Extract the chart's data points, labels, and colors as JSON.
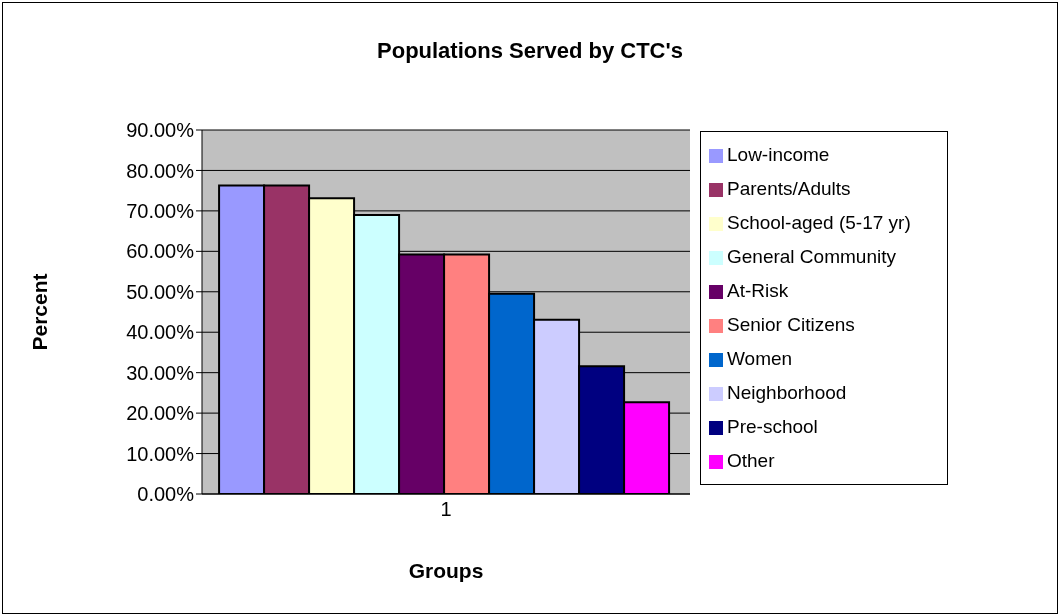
{
  "chart_data": {
    "type": "bar",
    "title": "Populations Served by CTC's",
    "xlabel": "Groups",
    "ylabel": "Percent",
    "categories": [
      "1"
    ],
    "series": [
      {
        "name": "Low-income",
        "color": "#9999ff",
        "values": [
          76.3
        ]
      },
      {
        "name": "Parents/Adults",
        "color": "#993366",
        "values": [
          76.3
        ]
      },
      {
        "name": "School-aged (5-17 yr)",
        "color": "#ffffcc",
        "values": [
          73.1
        ]
      },
      {
        "name": "General Community",
        "color": "#ccffff",
        "values": [
          69.0
        ]
      },
      {
        "name": "At-Risk",
        "color": "#660066",
        "values": [
          59.2
        ]
      },
      {
        "name": "Senior Citizens",
        "color": "#ff8080",
        "values": [
          59.2
        ]
      },
      {
        "name": "Women",
        "color": "#0066cc",
        "values": [
          49.5
        ]
      },
      {
        "name": "Neighborhood",
        "color": "#ccccff",
        "values": [
          43.1
        ]
      },
      {
        "name": "Pre-school",
        "color": "#000080",
        "values": [
          31.6
        ]
      },
      {
        "name": "Other",
        "color": "#ff00ff",
        "values": [
          22.7
        ]
      }
    ],
    "ylim": [
      0,
      90
    ],
    "yticks": [
      {
        "value": 0,
        "label": "0.00%"
      },
      {
        "value": 10,
        "label": "10.00%"
      },
      {
        "value": 20,
        "label": "20.00%"
      },
      {
        "value": 30,
        "label": "30.00%"
      },
      {
        "value": 40,
        "label": "40.00%"
      },
      {
        "value": 50,
        "label": "50.00%"
      },
      {
        "value": 60,
        "label": "60.00%"
      },
      {
        "value": 70,
        "label": "70.00%"
      },
      {
        "value": 80,
        "label": "80.00%"
      },
      {
        "value": 90,
        "label": "90.00%"
      }
    ],
    "grid": "y",
    "legend": "right"
  }
}
